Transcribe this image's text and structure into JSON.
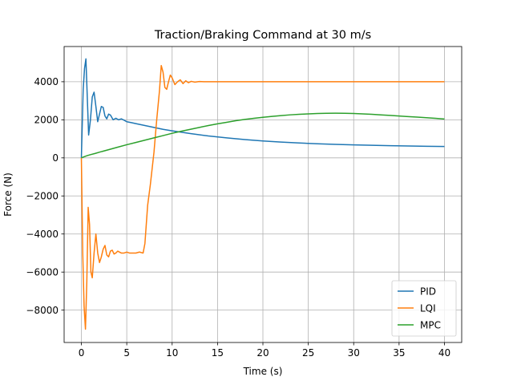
{
  "chart_data": {
    "type": "line",
    "title": "Traction/Braking Command at 30 m/s",
    "xlabel": "Time (s)",
    "ylabel": "Force (N)",
    "xlim": [
      -1.9,
      41.9
    ],
    "ylim": [
      -9700,
      5850
    ],
    "xticks": [
      0,
      5,
      10,
      15,
      20,
      25,
      30,
      35,
      40
    ],
    "xtick_labels": [
      "0",
      "5",
      "10",
      "15",
      "20",
      "25",
      "30",
      "35",
      "40"
    ],
    "yticks": [
      -8000,
      -6000,
      -4000,
      -2000,
      0,
      2000,
      4000
    ],
    "ytick_labels": [
      "−8000",
      "−6000",
      "−4000",
      "−2000",
      "0",
      "2000",
      "4000"
    ],
    "grid": true,
    "legend_position": "bottom-right",
    "series": [
      {
        "name": "PID",
        "color": "#1f77b4",
        "x": [
          0,
          0.2,
          0.35,
          0.5,
          0.65,
          0.8,
          1.0,
          1.2,
          1.4,
          1.6,
          1.8,
          2.0,
          2.2,
          2.4,
          2.6,
          2.8,
          3.0,
          3.2,
          3.5,
          3.8,
          4.1,
          4.4,
          4.7,
          5.0,
          5.5,
          6,
          7,
          8,
          9,
          10,
          12,
          14,
          16,
          18,
          20,
          22,
          24,
          26,
          28,
          30,
          32,
          34,
          36,
          38,
          40
        ],
        "y": [
          0,
          3600,
          4700,
          5200,
          3200,
          1200,
          2000,
          3200,
          3450,
          2700,
          1900,
          2300,
          2700,
          2650,
          2200,
          2050,
          2300,
          2250,
          2000,
          2080,
          2000,
          2050,
          1980,
          1900,
          1850,
          1800,
          1700,
          1600,
          1500,
          1420,
          1280,
          1150,
          1050,
          960,
          890,
          830,
          780,
          740,
          710,
          680,
          660,
          640,
          625,
          610,
          600
        ]
      },
      {
        "name": "LQI",
        "color": "#ff7f0e",
        "x": [
          0,
          0.15,
          0.3,
          0.45,
          0.6,
          0.75,
          0.9,
          1.05,
          1.2,
          1.4,
          1.6,
          1.8,
          2.0,
          2.2,
          2.4,
          2.6,
          2.8,
          3.0,
          3.2,
          3.4,
          3.6,
          3.8,
          4.0,
          4.2,
          4.4,
          4.7,
          5.0,
          5.3,
          5.6,
          6.0,
          6.4,
          6.8,
          7.0,
          7.3,
          7.6,
          8.0,
          8.3,
          8.6,
          8.8,
          9.0,
          9.2,
          9.4,
          9.6,
          9.8,
          10.0,
          10.3,
          10.6,
          10.9,
          11.2,
          11.5,
          11.8,
          12.1,
          12.5,
          13.0,
          13.5,
          14,
          16,
          20,
          25,
          30,
          35,
          40
        ],
        "y": [
          0,
          -5000,
          -7800,
          -9000,
          -6500,
          -2600,
          -3500,
          -6000,
          -6300,
          -5000,
          -4000,
          -5000,
          -5500,
          -5200,
          -4800,
          -4600,
          -5100,
          -5200,
          -4900,
          -4850,
          -5050,
          -5000,
          -4900,
          -4950,
          -5000,
          -5000,
          -4950,
          -5000,
          -5000,
          -5000,
          -4950,
          -5000,
          -4500,
          -2500,
          -1400,
          300,
          2000,
          3500,
          4850,
          4500,
          3700,
          3600,
          4000,
          4350,
          4200,
          3850,
          4000,
          4100,
          3900,
          4050,
          3950,
          4020,
          3980,
          4010,
          4000,
          4000,
          4000,
          4000,
          4000,
          4000,
          4000,
          4000
        ]
      },
      {
        "name": "MPC",
        "color": "#2ca02c",
        "x": [
          0,
          0.3,
          0.6,
          1.0,
          1.5,
          2,
          3,
          4,
          5,
          6,
          7,
          8,
          9,
          10,
          11,
          12,
          13,
          14,
          15,
          16,
          17,
          18,
          19,
          20,
          21,
          22,
          23,
          24,
          25,
          26,
          27,
          28,
          29,
          30,
          31,
          32,
          33,
          34,
          35,
          36,
          37,
          38,
          39,
          40
        ],
        "y": [
          0,
          60,
          110,
          170,
          230,
          300,
          430,
          560,
          690,
          810,
          930,
          1050,
          1170,
          1290,
          1400,
          1500,
          1600,
          1700,
          1790,
          1870,
          1950,
          2020,
          2080,
          2130,
          2180,
          2220,
          2260,
          2290,
          2310,
          2330,
          2340,
          2345,
          2340,
          2330,
          2310,
          2290,
          2260,
          2230,
          2200,
          2170,
          2140,
          2110,
          2080,
          2040
        ]
      }
    ]
  }
}
